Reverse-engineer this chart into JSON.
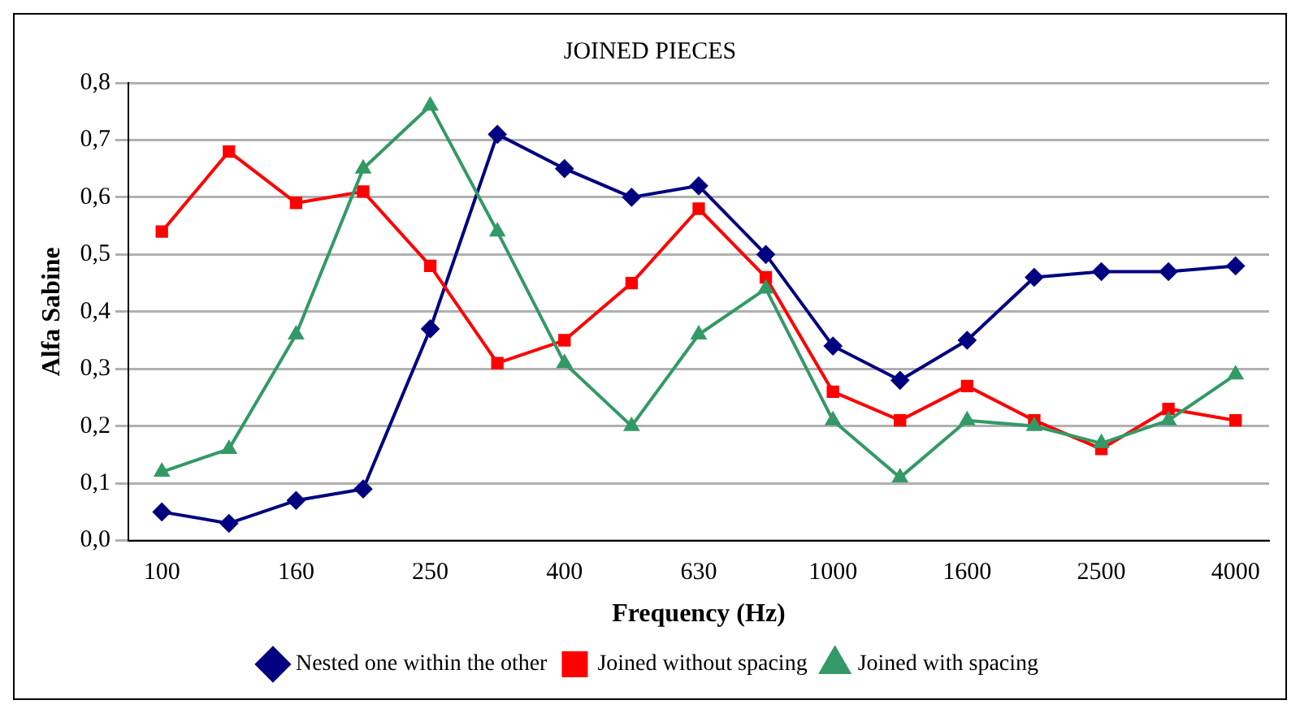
{
  "chart_data": {
    "type": "line",
    "title": "JOINED PIECES",
    "xlabel": "Frequency (Hz)",
    "ylabel": "Alfa Sabine",
    "categories": [
      "100",
      null,
      "160",
      null,
      "250",
      null,
      "400",
      null,
      "630",
      null,
      "1000",
      null,
      "1600",
      null,
      "2500",
      null,
      "4000"
    ],
    "series": [
      {
        "name": "Nested one within the other",
        "color": "#000080",
        "marker": "diamond",
        "values": [
          0.05,
          0.03,
          0.07,
          0.09,
          0.37,
          0.71,
          0.65,
          0.6,
          0.62,
          0.5,
          0.34,
          0.28,
          0.35,
          0.46,
          0.47,
          0.47,
          0.48
        ]
      },
      {
        "name": "Joined without spacing",
        "color": "#ff0000",
        "marker": "square",
        "values": [
          0.54,
          0.68,
          0.59,
          0.61,
          0.48,
          0.31,
          0.35,
          0.45,
          0.58,
          0.46,
          0.26,
          0.21,
          0.27,
          0.21,
          0.16,
          0.23,
          0.21
        ]
      },
      {
        "name": "Joined with spacing",
        "color": "#339966",
        "marker": "triangle",
        "values": [
          0.12,
          0.16,
          0.36,
          0.65,
          0.76,
          0.54,
          0.31,
          0.2,
          0.36,
          0.44,
          0.21,
          0.11,
          0.21,
          0.2,
          0.17,
          0.21,
          0.29
        ]
      }
    ],
    "ylim": [
      0,
      0.8
    ],
    "yticks": [
      {
        "value": 0,
        "label": "0,0"
      },
      {
        "value": 0.1,
        "label": "0,1"
      },
      {
        "value": 0.2,
        "label": "0,2"
      },
      {
        "value": 0.3,
        "label": "0,3"
      },
      {
        "value": 0.4,
        "label": "0,4"
      },
      {
        "value": 0.5,
        "label": "0,5"
      },
      {
        "value": 0.6,
        "label": "0,6"
      },
      {
        "value": 0.7,
        "label": "0,7"
      },
      {
        "value": 0.8,
        "label": "0,8"
      }
    ],
    "grid": "y",
    "legend": "bottom",
    "line_style": "solid"
  }
}
